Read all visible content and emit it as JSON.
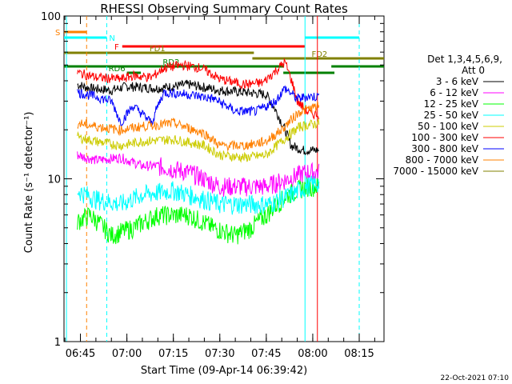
{
  "chart_data": {
    "type": "line",
    "title": "RHESSI Observing Summary Count Rates",
    "xlabel": "Start Time (09-Apr-14 06:39:42)",
    "ylabel": "Count Rate (s⁻¹ detector⁻¹)",
    "yscale": "log",
    "ylim": [
      1,
      100
    ],
    "y_ticks": [
      {
        "value": 1,
        "label": "1"
      },
      {
        "value": 10,
        "label": "10"
      },
      {
        "value": 100,
        "label": "100"
      }
    ],
    "x_range": [
      "06:39:42",
      "08:23:00"
    ],
    "x_ticks": [
      {
        "time": "06:45",
        "label": "06:45"
      },
      {
        "time": "07:00",
        "label": "07:00"
      },
      {
        "time": "07:15",
        "label": "07:15"
      },
      {
        "time": "07:30",
        "label": "07:30"
      },
      {
        "time": "07:45",
        "label": "07:45"
      },
      {
        "time": "08:00",
        "label": "08:00"
      },
      {
        "time": "08:15",
        "label": "08:15"
      }
    ],
    "legend_position": "right",
    "legend_header": [
      "Det 1,3,4,5,6,9,",
      "Att 0"
    ],
    "series": [
      {
        "name": "3 - 6 keV",
        "color": "#000000",
        "points": [
          [
            "06:44:00",
            38
          ],
          [
            "06:48:00",
            36
          ],
          [
            "06:55:00",
            35
          ],
          [
            "07:00:00",
            37
          ],
          [
            "07:10:00",
            36
          ],
          [
            "07:20:00",
            38
          ],
          [
            "07:30:00",
            35
          ],
          [
            "07:38:00",
            34
          ],
          [
            "07:45:00",
            33
          ],
          [
            "07:50:00",
            22
          ],
          [
            "07:53:00",
            16
          ],
          [
            "07:57:00",
            15
          ],
          [
            "08:00:00",
            15
          ],
          [
            "08:02:00",
            15
          ]
        ]
      },
      {
        "name": "6 - 12 keV",
        "color": "#ff00ff",
        "points": [
          [
            "06:44:00",
            14
          ],
          [
            "06:50:00",
            13
          ],
          [
            "06:58:00",
            13.5
          ],
          [
            "07:05:00",
            12
          ],
          [
            "07:10:00",
            12
          ],
          [
            "07:20:00",
            11
          ],
          [
            "07:30:00",
            9
          ],
          [
            "07:38:00",
            9
          ],
          [
            "07:45:00",
            9
          ],
          [
            "07:52:00",
            10
          ],
          [
            "07:58:00",
            11
          ],
          [
            "08:02:00",
            11
          ]
        ]
      },
      {
        "name": "12 - 25 keV",
        "color": "#00ff00",
        "points": [
          [
            "06:44:00",
            5.5
          ],
          [
            "06:48:00",
            6
          ],
          [
            "06:55:00",
            4.5
          ],
          [
            "07:02:00",
            5
          ],
          [
            "07:10:00",
            6
          ],
          [
            "07:20:00",
            6
          ],
          [
            "07:28:00",
            5
          ],
          [
            "07:35:00",
            4.5
          ],
          [
            "07:40:00",
            5
          ],
          [
            "07:45:00",
            6
          ],
          [
            "07:52:00",
            8
          ],
          [
            "07:58:00",
            9
          ],
          [
            "08:02:00",
            9
          ]
        ]
      },
      {
        "name": "25 - 50 keV",
        "color": "#00ffff",
        "points": [
          [
            "06:44:00",
            8.5
          ],
          [
            "06:50:00",
            7.5
          ],
          [
            "06:58:00",
            7
          ],
          [
            "07:05:00",
            8
          ],
          [
            "07:15:00",
            8.5
          ],
          [
            "07:25:00",
            7.5
          ],
          [
            "07:30:00",
            7
          ],
          [
            "07:40:00",
            7
          ],
          [
            "07:46:00",
            7
          ],
          [
            "07:53:00",
            8
          ],
          [
            "07:58:00",
            9
          ],
          [
            "08:02:00",
            9.5
          ]
        ]
      },
      {
        "name": "50 - 100 keV",
        "color": "#cccc00",
        "points": [
          [
            "06:44:00",
            18
          ],
          [
            "06:50:00",
            17
          ],
          [
            "06:58:00",
            16
          ],
          [
            "07:05:00",
            17
          ],
          [
            "07:15:00",
            17.5
          ],
          [
            "07:25:00",
            16
          ],
          [
            "07:30:00",
            14
          ],
          [
            "07:38:00",
            13.5
          ],
          [
            "07:45:00",
            14
          ],
          [
            "07:50:00",
            17
          ],
          [
            "07:56:00",
            21
          ],
          [
            "08:02:00",
            22
          ]
        ]
      },
      {
        "name": "100 - 300 keV",
        "color": "#ff0000",
        "points": [
          [
            "06:44:00",
            45
          ],
          [
            "06:50:00",
            42
          ],
          [
            "06:58:00",
            41
          ],
          [
            "07:02:00",
            43
          ],
          [
            "07:08:00",
            42
          ],
          [
            "07:12:00",
            48
          ],
          [
            "07:18:00",
            50
          ],
          [
            "07:24:00",
            48
          ],
          [
            "07:30:00",
            41
          ],
          [
            "07:38:00",
            38
          ],
          [
            "07:44:00",
            39
          ],
          [
            "07:48:00",
            46
          ],
          [
            "07:51:00",
            52
          ],
          [
            "07:55:00",
            30
          ],
          [
            "07:58:00",
            26
          ],
          [
            "08:00:00",
            25
          ],
          [
            "08:02:00",
            25
          ]
        ]
      },
      {
        "name": "300 - 800 keV",
        "color": "#0000ff",
        "points": [
          [
            "06:44:00",
            34
          ],
          [
            "06:50:00",
            32
          ],
          [
            "06:55:00",
            30
          ],
          [
            "06:58:00",
            22
          ],
          [
            "07:02:00",
            28
          ],
          [
            "07:08:00",
            22
          ],
          [
            "07:12:00",
            34
          ],
          [
            "07:20:00",
            33
          ],
          [
            "07:28:00",
            31
          ],
          [
            "07:35:00",
            26
          ],
          [
            "07:42:00",
            26
          ],
          [
            "07:48:00",
            30
          ],
          [
            "07:51:00",
            36
          ],
          [
            "07:55:00",
            31
          ],
          [
            "07:58:00",
            32
          ],
          [
            "08:02:00",
            32
          ]
        ]
      },
      {
        "name": "800 - 7000 keV",
        "color": "#ff8000",
        "points": [
          [
            "06:44:00",
            22
          ],
          [
            "06:50:00",
            21
          ],
          [
            "06:58:00",
            20
          ],
          [
            "07:05:00",
            21
          ],
          [
            "07:15:00",
            22
          ],
          [
            "07:25:00",
            19
          ],
          [
            "07:30:00",
            16
          ],
          [
            "07:38:00",
            16
          ],
          [
            "07:45:00",
            17
          ],
          [
            "07:50:00",
            20
          ],
          [
            "07:56:00",
            26
          ],
          [
            "08:02:00",
            28
          ]
        ]
      },
      {
        "name": "7000 - 15000 keV",
        "color": "#808000",
        "points": []
      }
    ],
    "flag_bars": [
      {
        "label": "S",
        "color": "#ff8000",
        "start": "06:39:42",
        "end": "06:47:00",
        "level": 1
      },
      {
        "label": "N",
        "color": "#00ffff",
        "start": "06:39:42",
        "end": "06:53:30",
        "level": 2
      },
      {
        "label": "",
        "color": "#00ffff",
        "start": "07:57:30",
        "end": "08:15:00",
        "level": 2
      },
      {
        "label": "F",
        "color": "#ff0000",
        "start": "06:58:30",
        "end": "07:57:30",
        "level": 3
      },
      {
        "label": "FD1",
        "color": "#808000",
        "start": "06:39:42",
        "end": "07:41:00",
        "level": 4
      },
      {
        "label": "FD2",
        "color": "#808000",
        "start": "07:40:30",
        "end": "08:23:00",
        "level": 5
      },
      {
        "label": "RD2",
        "color": "#008000",
        "start": "06:39:42",
        "end": "07:50:30",
        "level": 6
      },
      {
        "label": "",
        "color": "#008000",
        "start": "08:06:00",
        "end": "08:23:00",
        "level": 6
      },
      {
        "label": "RD6",
        "color": "#008000",
        "start": "07:00:00",
        "end": "07:04:30",
        "level": 7
      },
      {
        "label": "",
        "color": "#008000",
        "start": "07:50:30",
        "end": "08:07:00",
        "level": 7
      }
    ],
    "vertical_lines": [
      {
        "time": "06:40:30",
        "color": "#00ffff",
        "style": "solid"
      },
      {
        "time": "06:47:00",
        "color": "#ff8000",
        "style": "dashed"
      },
      {
        "time": "06:53:30",
        "color": "#00ffff",
        "style": "dashed"
      },
      {
        "time": "07:57:30",
        "color": "#00ffff",
        "style": "solid"
      },
      {
        "time": "08:01:30",
        "color": "#ff0000",
        "style": "solid"
      },
      {
        "time": "08:15:00",
        "color": "#00ffff",
        "style": "dashed"
      }
    ],
    "footer_timestamp": "22-Oct-2021 07:10"
  }
}
